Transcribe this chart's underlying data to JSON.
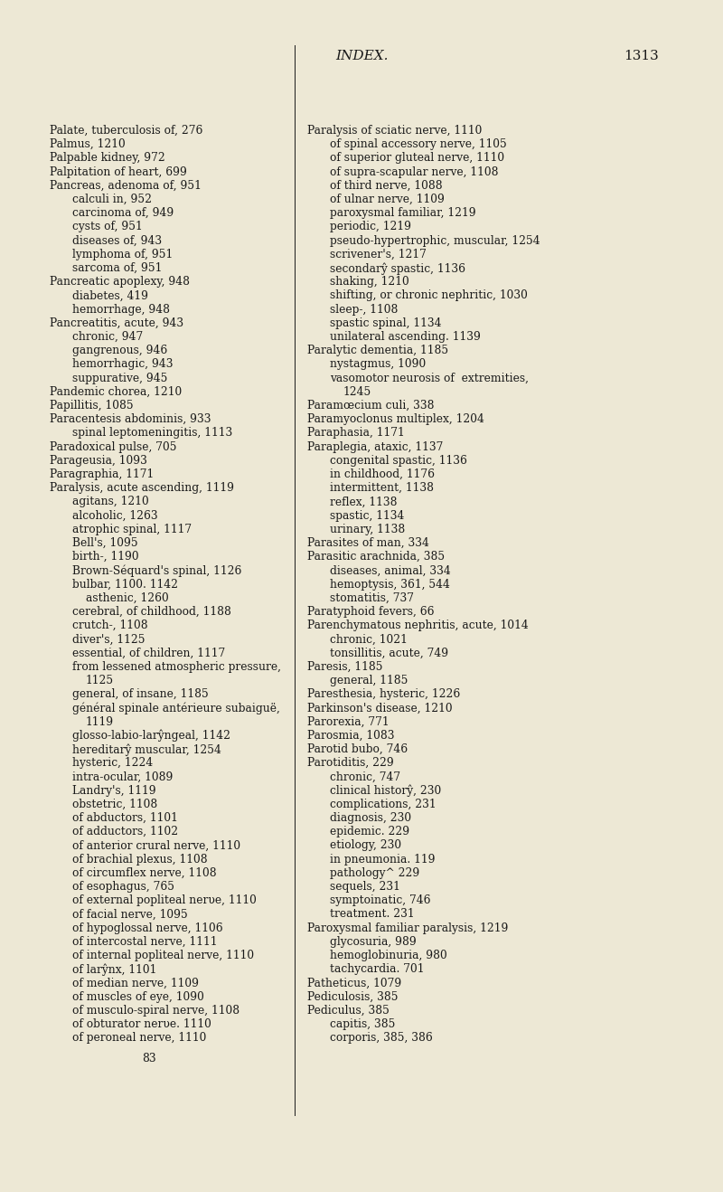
{
  "bg_color": "#ede8d5",
  "text_color": "#1a1a1a",
  "header_title": "INDEX.",
  "header_page": "1313",
  "footer_number": "83",
  "col1_lines": [
    [
      "Palate, tuberculosis of, 276",
      0
    ],
    [
      "Palmus, 1210",
      0
    ],
    [
      "Palpable kidney, 972",
      0
    ],
    [
      "Palpitation of heart, 699",
      0
    ],
    [
      "Pancreas, adenoma of, 951",
      0
    ],
    [
      "calculi in, 952",
      1
    ],
    [
      "carcinoma of, 949",
      1
    ],
    [
      "cysts of, 951",
      1
    ],
    [
      "diseases of, 943",
      1
    ],
    [
      "lymphoma of, 951",
      1
    ],
    [
      "sarcoma of, 951",
      1
    ],
    [
      "Pancreatic apoplexy, 948",
      0
    ],
    [
      "diabetes, 419",
      1
    ],
    [
      "hemorrhage, 948",
      1
    ],
    [
      "Pancreatitis, acute, 943",
      0
    ],
    [
      "chronic, 947",
      1
    ],
    [
      "gangrenous, 946",
      1
    ],
    [
      "hemorrhagic, 943",
      1
    ],
    [
      "suppurative, 945",
      1
    ],
    [
      "Pandemic chorea, 1210",
      0
    ],
    [
      "Papillitis, 1085",
      0
    ],
    [
      "Paracentesis abdominis, 933",
      0
    ],
    [
      "spinal leptomeningitis, 1113",
      1
    ],
    [
      "Paradoxical pulse, 705",
      0
    ],
    [
      "Parageusia, 1093",
      0
    ],
    [
      "Paragraphia, 1171",
      0
    ],
    [
      "Paralysis, acute ascending, 1119",
      0
    ],
    [
      "agitans, 1210",
      1
    ],
    [
      "alcoholic, 1263",
      1
    ],
    [
      "atrophic spinal, 1117",
      1
    ],
    [
      "Bell's, 1095",
      1
    ],
    [
      "birth-, 1190",
      1
    ],
    [
      "Brown-Séquard's spinal, 1126",
      1
    ],
    [
      "bulbar, 1100. 1142",
      1
    ],
    [
      "asthenic, 1260",
      2
    ],
    [
      "cerebral, of childhood, 1188",
      1
    ],
    [
      "crutch-, 1108",
      1
    ],
    [
      "diver's, 1125",
      1
    ],
    [
      "essential, of children, 1117",
      1
    ],
    [
      "from lessened atmospheric pressure,",
      1
    ],
    [
      "1125",
      2
    ],
    [
      "general, of insane, 1185",
      1
    ],
    [
      "général spinale antérieure subaiguë,",
      1
    ],
    [
      "1119",
      2
    ],
    [
      "glosso-labio-larŷngeal, 1142",
      1
    ],
    [
      "hereditarŷ muscular, 1254",
      1
    ],
    [
      "hysteric, 1224",
      1
    ],
    [
      "intra-ocular, 1089",
      1
    ],
    [
      "Landry's, 1119",
      1
    ],
    [
      "obstetric, 1108",
      1
    ],
    [
      "of abductors, 1101",
      1
    ],
    [
      "of adductors, 1102",
      1
    ],
    [
      "of anterior crural nerve, 1110",
      1
    ],
    [
      "of brachial plexus, 1108",
      1
    ],
    [
      "of circumflex nerve, 1108",
      1
    ],
    [
      "of esophagus, 765",
      1
    ],
    [
      "of external popliteal nerυe, 1110",
      1
    ],
    [
      "of facial nerve, 1095",
      1
    ],
    [
      "of hypoglossal nerve, 1106",
      1
    ],
    [
      "of intercostal nerve, 1111",
      1
    ],
    [
      "of internal popliteal nerve, 1110",
      1
    ],
    [
      "of larŷnx, 1101",
      1
    ],
    [
      "of median nerve, 1109",
      1
    ],
    [
      "of muscles of eye, 1090",
      1
    ],
    [
      "of musculo-spiral nerve, 1108",
      1
    ],
    [
      "of obturator nerυe. 1110",
      1
    ],
    [
      "of peroneal nerve, 1110",
      1
    ]
  ],
  "col2_lines": [
    [
      "Paralysis of sciatic nerve, 1110",
      0
    ],
    [
      "of spinal accessory nerve, 1105",
      1
    ],
    [
      "of superior gluteal nerve, 1110",
      1
    ],
    [
      "of supra-scapular nerve, 1108",
      1
    ],
    [
      "of third nerve, 1088",
      1
    ],
    [
      "of ulnar nerve, 1109",
      1
    ],
    [
      "paroxysmal familiar, 1219",
      1
    ],
    [
      "periodic, 1219",
      1
    ],
    [
      "pseudo-hypertrophic, muscular, 1254",
      1
    ],
    [
      "scrivener's, 1217",
      1
    ],
    [
      "secondarŷ spastic, 1136",
      1
    ],
    [
      "shaking, 1210",
      1
    ],
    [
      "shifting, or chronic nephritic, 1030",
      1
    ],
    [
      "sleep-, 1108",
      1
    ],
    [
      "spastic spinal, 1134",
      1
    ],
    [
      "unilateral ascending. 1139",
      1
    ],
    [
      "Paralytic dementia, 1185",
      0
    ],
    [
      "nystagmus, 1090",
      1
    ],
    [
      "vasomotor neurosis of  extremities,",
      1
    ],
    [
      "1245",
      2
    ],
    [
      "Paramœcium culi, 338",
      0
    ],
    [
      "Paramyoclonus multiplex, 1204",
      0
    ],
    [
      "Paraphasia, 1171",
      0
    ],
    [
      "Paraplegia, ataxic, 1137",
      0
    ],
    [
      "congenital spastic, 1136",
      1
    ],
    [
      "in childhood, 1176",
      1
    ],
    [
      "intermittent, 1138",
      1
    ],
    [
      "reflex, 1138",
      1
    ],
    [
      "spastic, 1134",
      1
    ],
    [
      "urinary, 1138",
      1
    ],
    [
      "Parasites of man, 334",
      0
    ],
    [
      "Parasitic arachnida, 385",
      0
    ],
    [
      "diseases, animal, 334",
      1
    ],
    [
      "hemoptysis, 361, 544",
      1
    ],
    [
      "stomatitis, 737",
      1
    ],
    [
      "Paratyphoid fevers, 66",
      0
    ],
    [
      "Parenchymatous nephritis, acute, 1014",
      0
    ],
    [
      "chronic, 1021",
      1
    ],
    [
      "tonsillitis, acute, 749",
      1
    ],
    [
      "Paresis, 1185",
      0
    ],
    [
      "general, 1185",
      1
    ],
    [
      "Paresthesia, hysteric, 1226",
      0
    ],
    [
      "Parkinson's disease, 1210",
      0
    ],
    [
      "Parorexia, 771",
      0
    ],
    [
      "Parosmia, 1083",
      0
    ],
    [
      "Parotid bubo, 746",
      0
    ],
    [
      "Parotiditis, 229",
      0
    ],
    [
      "chronic, 747",
      1
    ],
    [
      "clinical historŷ, 230",
      1
    ],
    [
      "complications, 231",
      1
    ],
    [
      "diagnosis, 230",
      1
    ],
    [
      "epidemic. 229",
      1
    ],
    [
      "etiology, 230",
      1
    ],
    [
      "in pneumonia. 119",
      1
    ],
    [
      "pathology^ 229",
      1
    ],
    [
      "sequels, 231",
      1
    ],
    [
      "symptoinatic, 746",
      1
    ],
    [
      "treatment. 231",
      1
    ],
    [
      "Paroxysmal familiar paralysis, 1219",
      0
    ],
    [
      "glycosuria, 989",
      1
    ],
    [
      "hemoglobinuria, 980",
      1
    ],
    [
      "tachycardia. 701",
      1
    ],
    [
      "Patheticus, 1079",
      0
    ],
    [
      "Pediculosis, 385",
      0
    ],
    [
      "Pediculus, 385",
      0
    ],
    [
      "capitis, 385",
      1
    ],
    [
      "corporis, 385, 386",
      1
    ]
  ]
}
